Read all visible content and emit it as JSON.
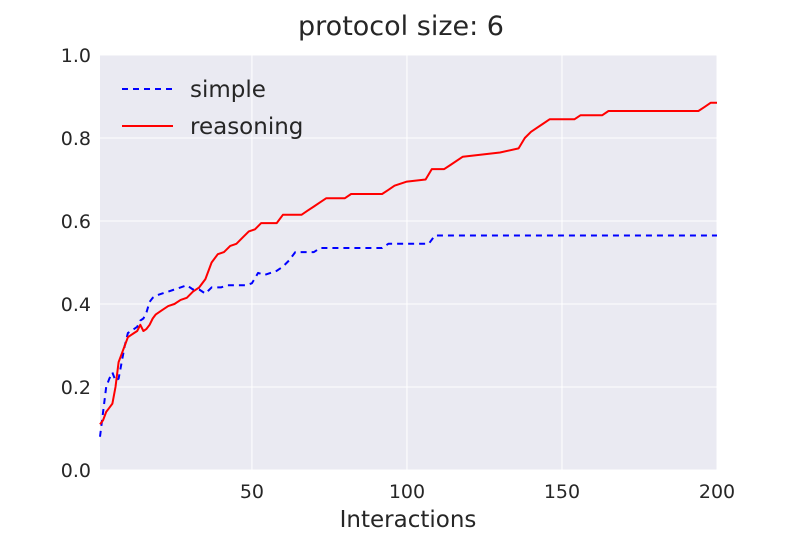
{
  "chart_data": {
    "type": "line",
    "title": "protocol size: 6",
    "xlabel": "Interactions",
    "ylabel": "",
    "xlim": [
      1,
      200
    ],
    "ylim": [
      0.0,
      1.0
    ],
    "x_ticks": [
      50,
      100,
      150,
      200
    ],
    "x_tick_labels": [
      "50",
      "100",
      "150",
      "200"
    ],
    "y_ticks": [
      0.0,
      0.2,
      0.4,
      0.6,
      0.8,
      1.0
    ],
    "y_tick_labels": [
      "0.0",
      "0.2",
      "0.4",
      "0.6",
      "0.8",
      "1.0"
    ],
    "grid": true,
    "legend_position": "top-left",
    "series": [
      {
        "name": "simple",
        "color": "#0000ff",
        "style": "dashed",
        "points": [
          [
            1,
            0.08
          ],
          [
            2,
            0.14
          ],
          [
            3,
            0.2
          ],
          [
            4,
            0.22
          ],
          [
            5,
            0.235
          ],
          [
            6,
            0.215
          ],
          [
            7,
            0.22
          ],
          [
            8,
            0.26
          ],
          [
            9,
            0.3
          ],
          [
            10,
            0.33
          ],
          [
            11,
            0.335
          ],
          [
            12,
            0.34
          ],
          [
            13,
            0.345
          ],
          [
            14,
            0.36
          ],
          [
            15,
            0.365
          ],
          [
            16,
            0.38
          ],
          [
            17,
            0.405
          ],
          [
            18,
            0.415
          ],
          [
            19,
            0.42
          ],
          [
            21,
            0.425
          ],
          [
            23,
            0.43
          ],
          [
            25,
            0.435
          ],
          [
            27,
            0.44
          ],
          [
            29,
            0.445
          ],
          [
            31,
            0.435
          ],
          [
            33,
            0.435
          ],
          [
            35,
            0.425
          ],
          [
            37,
            0.44
          ],
          [
            40,
            0.44
          ],
          [
            42,
            0.445
          ],
          [
            48,
            0.445
          ],
          [
            50,
            0.45
          ],
          [
            52,
            0.475
          ],
          [
            54,
            0.47
          ],
          [
            56,
            0.475
          ],
          [
            58,
            0.48
          ],
          [
            60,
            0.49
          ],
          [
            62,
            0.505
          ],
          [
            64,
            0.525
          ],
          [
            70,
            0.525
          ],
          [
            72,
            0.535
          ],
          [
            92,
            0.535
          ],
          [
            94,
            0.545
          ],
          [
            107,
            0.545
          ],
          [
            109,
            0.565
          ],
          [
            200,
            0.565
          ]
        ]
      },
      {
        "name": "reasoning",
        "color": "#ff0000",
        "style": "solid",
        "points": [
          [
            1,
            0.11
          ],
          [
            2,
            0.12
          ],
          [
            3,
            0.14
          ],
          [
            4,
            0.15
          ],
          [
            5,
            0.16
          ],
          [
            6,
            0.2
          ],
          [
            7,
            0.26
          ],
          [
            8,
            0.28
          ],
          [
            9,
            0.3
          ],
          [
            10,
            0.32
          ],
          [
            11,
            0.325
          ],
          [
            12,
            0.33
          ],
          [
            13,
            0.335
          ],
          [
            14,
            0.35
          ],
          [
            15,
            0.335
          ],
          [
            16,
            0.34
          ],
          [
            17,
            0.35
          ],
          [
            18,
            0.365
          ],
          [
            19,
            0.375
          ],
          [
            21,
            0.385
          ],
          [
            23,
            0.395
          ],
          [
            25,
            0.4
          ],
          [
            27,
            0.41
          ],
          [
            29,
            0.415
          ],
          [
            31,
            0.43
          ],
          [
            33,
            0.44
          ],
          [
            35,
            0.46
          ],
          [
            37,
            0.5
          ],
          [
            39,
            0.52
          ],
          [
            41,
            0.525
          ],
          [
            43,
            0.54
          ],
          [
            45,
            0.545
          ],
          [
            47,
            0.56
          ],
          [
            49,
            0.575
          ],
          [
            51,
            0.58
          ],
          [
            53,
            0.595
          ],
          [
            58,
            0.595
          ],
          [
            60,
            0.615
          ],
          [
            66,
            0.615
          ],
          [
            68,
            0.625
          ],
          [
            70,
            0.635
          ],
          [
            72,
            0.645
          ],
          [
            74,
            0.655
          ],
          [
            80,
            0.655
          ],
          [
            82,
            0.665
          ],
          [
            92,
            0.665
          ],
          [
            94,
            0.675
          ],
          [
            96,
            0.685
          ],
          [
            100,
            0.695
          ],
          [
            106,
            0.7
          ],
          [
            108,
            0.725
          ],
          [
            112,
            0.725
          ],
          [
            114,
            0.735
          ],
          [
            118,
            0.755
          ],
          [
            130,
            0.765
          ],
          [
            136,
            0.775
          ],
          [
            138,
            0.8
          ],
          [
            140,
            0.815
          ],
          [
            144,
            0.835
          ],
          [
            146,
            0.845
          ],
          [
            154,
            0.845
          ],
          [
            156,
            0.855
          ],
          [
            163,
            0.855
          ],
          [
            165,
            0.865
          ],
          [
            194,
            0.865
          ],
          [
            196,
            0.875
          ],
          [
            198,
            0.885
          ],
          [
            200,
            0.885
          ]
        ]
      }
    ]
  }
}
